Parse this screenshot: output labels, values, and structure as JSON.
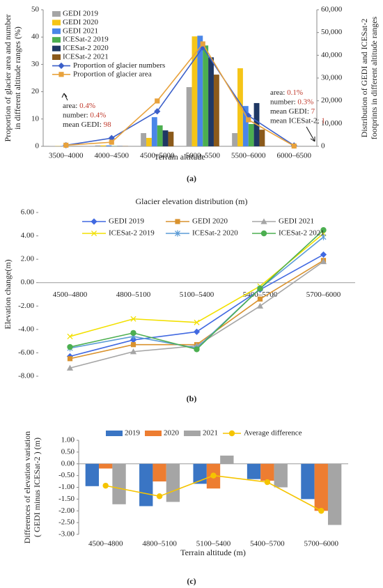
{
  "chart_data": [
    {
      "type": "bar",
      "xlabel": "Terrain altitude",
      "panel_label": "(a)",
      "ylabel": [
        "Proportion of glacier area and number",
        "in different altitude ranges (%)"
      ],
      "y2label": [
        "Distribution of GEDI and ICESat-2",
        "footprints in different altitude ranges"
      ],
      "categories": [
        "3500–4000",
        "4000–4500",
        "4500–5000",
        "5000–5500",
        "5500–6000",
        "6000–6500"
      ],
      "ylim": [
        0,
        50
      ],
      "yticks": [
        0,
        10,
        20,
        30,
        40,
        50
      ],
      "y2lim": [
        0,
        60000
      ],
      "y2ticks": [
        0,
        {
          "value": 10000,
          "label": "10,000"
        },
        {
          "value": 20000,
          "label": "20,000"
        },
        {
          "value": 30000,
          "label": "30,000"
        },
        {
          "value": 40000,
          "label": "40,000"
        },
        {
          "value": 50000,
          "label": "50,000"
        },
        {
          "value": 60000,
          "label": "60,000"
        }
      ],
      "legend": "upper left",
      "series": [
        {
          "name": "GEDI 2019",
          "type": "bar",
          "axis": "y2",
          "color": "#a5a5a5",
          "values": [
            100,
            400,
            5800,
            26000,
            5800,
            7
          ]
        },
        {
          "name": "GEDI 2020",
          "type": "bar",
          "axis": "y2",
          "color": "#f5c518",
          "values": [
            100,
            400,
            3700,
            48300,
            34300,
            7
          ]
        },
        {
          "name": "GEDI 2021",
          "type": "bar",
          "axis": "y2",
          "color": "#4a86e8",
          "values": [
            100,
            400,
            12800,
            48600,
            17700,
            7
          ]
        },
        {
          "name": "ICESat-2 2019",
          "type": "bar",
          "axis": "y2",
          "color": "#4caf50",
          "values": [
            20,
            100,
            9200,
            44300,
            9800,
            1
          ]
        },
        {
          "name": "ICESat-2 2020",
          "type": "bar",
          "axis": "y2",
          "color": "#1f3864",
          "values": [
            20,
            100,
            7000,
            39100,
            19000,
            1
          ]
        },
        {
          "name": "ICESat-2 2021",
          "type": "bar",
          "axis": "y2",
          "color": "#8b5a1b",
          "values": [
            20,
            100,
            6400,
            31500,
            7300,
            1
          ]
        },
        {
          "name": "Proportion of glacier numbers",
          "type": "line",
          "marker": "diamond",
          "color": "#3b5fc9",
          "values": [
            0.4,
            3,
            12.8,
            36.2,
            11.2,
            0.3
          ]
        },
        {
          "name": "Proportion of glacier area",
          "type": "line",
          "marker": "square",
          "color": "#e8a23c",
          "values": [
            0.4,
            1.5,
            16.6,
            37.5,
            9.7,
            0.1
          ]
        }
      ],
      "annotations": [
        {
          "lines": [
            {
              "key": "area:",
              "value": "0.4%"
            },
            {
              "key": "number:",
              "value": "0.4%"
            },
            {
              "key": "mean GEDI:",
              "value": "98"
            }
          ]
        },
        {
          "lines": [
            {
              "key": "area:",
              "value": "0.1%"
            },
            {
              "key": "number:",
              "value": "0.3%"
            },
            {
              "key": "mean GEDI:",
              "value": "7"
            },
            {
              "key": "mean ICESat-2:",
              "value": "1"
            }
          ]
        }
      ]
    },
    {
      "type": "line",
      "title": "Glacier elevation distribution (m)",
      "ylabel": "Elevation change(m)",
      "panel_label": "(b)",
      "categories": [
        "4500–4800",
        "4800–5100",
        "5100–5400",
        "5400–5700",
        "5700–6000"
      ],
      "ylim": [
        -8,
        6
      ],
      "yticks": [
        {
          "value": 6,
          "label": "6.00"
        },
        {
          "value": 4,
          "label": "4.00"
        },
        {
          "value": 2,
          "label": "2.00"
        },
        {
          "value": 0,
          "label": "0.00"
        },
        {
          "value": -2,
          "label": "-2.00"
        },
        {
          "value": -4,
          "label": "-4.00"
        },
        {
          "value": -6,
          "label": "-6.00"
        },
        {
          "value": -8,
          "label": "-8.00"
        }
      ],
      "legend": "top",
      "series": [
        {
          "name": "GEDI 2019",
          "marker": "diamond",
          "color": "#4169e1",
          "values": [
            -6.3,
            -4.9,
            -4.2,
            -0.6,
            2.4
          ]
        },
        {
          "name": "GEDI 2020",
          "marker": "square",
          "color": "#d9922e",
          "values": [
            -6.5,
            -5.3,
            -5.3,
            -1.4,
            1.9
          ]
        },
        {
          "name": "GEDI 2021",
          "marker": "triangle",
          "color": "#a5a5a5",
          "values": [
            -7.3,
            -5.9,
            -5.4,
            -2.0,
            1.8
          ]
        },
        {
          "name": "ICESat-2 2019",
          "marker": "x",
          "color": "#f2e000",
          "values": [
            -4.6,
            -3.1,
            -3.4,
            -0.3,
            4.2
          ]
        },
        {
          "name": "ICESat-2 2020",
          "marker": "star",
          "color": "#5b9bd5",
          "values": [
            -5.6,
            -4.6,
            -5.6,
            -0.5,
            3.9
          ]
        },
        {
          "name": "ICESat-2 2021",
          "marker": "circle",
          "color": "#4caf50",
          "values": [
            -5.5,
            -4.3,
            -5.7,
            -0.5,
            4.5
          ]
        }
      ]
    },
    {
      "type": "bar",
      "ylabel": [
        "Differences of elevation variation",
        "( GEDI minus ICESat-2 ) (m)"
      ],
      "xlabel": "Terrain altitude (m)",
      "panel_label": "(c)",
      "categories": [
        "4500–4800",
        "4800–5100",
        "5100–5400",
        "5400–5700",
        "5700–6000"
      ],
      "ylim": [
        -3,
        1
      ],
      "yticks": [
        {
          "value": 1,
          "label": "1.00"
        },
        {
          "value": 0.5,
          "label": "0.50"
        },
        {
          "value": 0,
          "label": "0.00"
        },
        {
          "value": -0.5,
          "label": "-0.50"
        },
        {
          "value": -1,
          "label": "-1.00"
        },
        {
          "value": -1.5,
          "label": "-1.50"
        },
        {
          "value": -2,
          "label": "-2.00"
        },
        {
          "value": -2.5,
          "label": "-2.50"
        },
        {
          "value": -3,
          "label": "-3.00"
        }
      ],
      "legend": "top",
      "series": [
        {
          "name": "2019",
          "type": "bar",
          "color": "#3a75c4",
          "values": [
            -0.95,
            -1.8,
            -0.85,
            -0.65,
            -1.5
          ]
        },
        {
          "name": "2020",
          "type": "bar",
          "color": "#ed7d31",
          "values": [
            -0.2,
            -0.75,
            -1.05,
            -0.72,
            -2.0
          ]
        },
        {
          "name": "2021",
          "type": "bar",
          "color": "#a5a5a5",
          "values": [
            -1.72,
            -1.62,
            0.35,
            -1.0,
            -2.6
          ]
        },
        {
          "name": "Average difference",
          "type": "line",
          "marker": "circle",
          "color": "#f5c400",
          "values": [
            -0.93,
            -1.38,
            -0.5,
            -0.78,
            -2.0
          ]
        }
      ]
    }
  ]
}
